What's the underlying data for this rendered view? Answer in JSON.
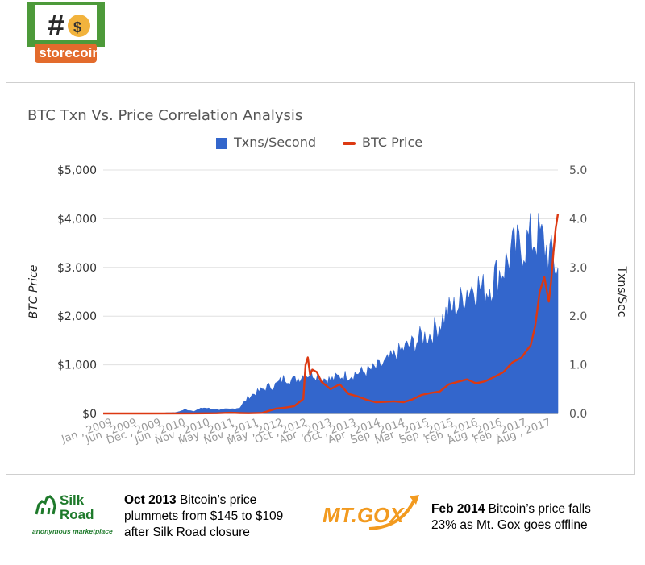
{
  "logo": {
    "text": "storecoin",
    "symbol": "#$"
  },
  "chart_data": {
    "type": "bar+line",
    "title": "BTC Txn Vs. Price Correlation Analysis",
    "legend": [
      "Txns/Second",
      "BTC Price"
    ],
    "legend_position": "top-center",
    "ylabel_left": "BTC Price",
    "ylabel_right": "Txns/Sec",
    "ylim_left": [
      0,
      5000
    ],
    "ylim_right": [
      0,
      5
    ],
    "yticks_left": [
      "$0",
      "$1,000",
      "$2,000",
      "$3,000",
      "$4,000",
      "$5,000"
    ],
    "yticks_right": [
      "0.0",
      "1.0",
      "2.0",
      "3.0",
      "4.0",
      "5.0"
    ],
    "xticks": [
      "Jan , 2009",
      "Jun , 2009",
      "Dec , 2009",
      "Jun , 2010",
      "Nov , 2010",
      "May , 2011",
      "Nov , 2011",
      "May , 2012",
      "Oct , 2012",
      "Apr , 2013",
      "Oct , 2013",
      "Apr , 2014",
      "Sep , 2014",
      "Mar , 2015",
      "Sep , 2015",
      "Feb , 2016",
      "Aug , 2016",
      "Feb , 2017",
      "Aug , 2017"
    ],
    "grid": true,
    "colors": {
      "txns": "#3366cc",
      "price": "#dc3912"
    },
    "series": [
      {
        "name": "Txns/Second",
        "axis": "right",
        "x": [
          0,
          0.04,
          0.08,
          0.12,
          0.16,
          0.18,
          0.2,
          0.22,
          0.25,
          0.28,
          0.3,
          0.32,
          0.34,
          0.36,
          0.38,
          0.4,
          0.42,
          0.44,
          0.46,
          0.48,
          0.5,
          0.52,
          0.54,
          0.56,
          0.58,
          0.6,
          0.62,
          0.64,
          0.66,
          0.68,
          0.7,
          0.72,
          0.74,
          0.76,
          0.78,
          0.8,
          0.82,
          0.84,
          0.86,
          0.88,
          0.9,
          0.92,
          0.94,
          0.96,
          0.98,
          1.0
        ],
        "values": [
          0.0,
          0.0,
          0.01,
          0.01,
          0.02,
          0.08,
          0.05,
          0.12,
          0.08,
          0.09,
          0.12,
          0.35,
          0.45,
          0.55,
          0.6,
          0.75,
          0.7,
          0.8,
          0.85,
          0.75,
          0.7,
          0.78,
          0.8,
          0.85,
          0.88,
          0.95,
          1.05,
          1.2,
          1.35,
          1.45,
          1.6,
          1.65,
          1.9,
          2.15,
          2.25,
          2.6,
          2.7,
          2.55,
          2.85,
          3.05,
          3.4,
          3.5,
          3.65,
          3.7,
          3.35,
          3.0
        ]
      },
      {
        "name": "BTC Price",
        "axis": "left",
        "x": [
          0,
          0.1,
          0.2,
          0.25,
          0.28,
          0.3,
          0.32,
          0.35,
          0.38,
          0.4,
          0.42,
          0.44,
          0.445,
          0.45,
          0.455,
          0.46,
          0.47,
          0.48,
          0.5,
          0.52,
          0.54,
          0.56,
          0.58,
          0.6,
          0.62,
          0.64,
          0.66,
          0.68,
          0.7,
          0.72,
          0.74,
          0.76,
          0.78,
          0.8,
          0.82,
          0.84,
          0.86,
          0.88,
          0.9,
          0.92,
          0.94,
          0.95,
          0.96,
          0.97,
          0.98,
          0.985,
          0.99,
          0.995,
          1.0
        ],
        "values": [
          0,
          0,
          1,
          5,
          15,
          8,
          5,
          12,
          100,
          120,
          150,
          300,
          1000,
          1150,
          800,
          900,
          850,
          650,
          500,
          600,
          400,
          350,
          280,
          230,
          240,
          250,
          230,
          290,
          380,
          420,
          450,
          600,
          650,
          700,
          620,
          660,
          750,
          850,
          1050,
          1150,
          1400,
          1800,
          2500,
          2800,
          2300,
          2700,
          3300,
          3800,
          4100
        ]
      }
    ]
  },
  "annotations": [
    {
      "logo_line1": "Silk",
      "logo_line2": "Road",
      "logo_tag": "anonymous marketplace",
      "date": "Oct 2013",
      "text1": " Bitcoin’s price",
      "text2": "plummets from $145 to $109",
      "text3": "after Silk Road closure"
    },
    {
      "logo_text": "MT.GOX",
      "date": "Feb 2014",
      "text1": " Bitcoin’s price falls",
      "text2": "23% as Mt. Gox goes offline"
    }
  ]
}
